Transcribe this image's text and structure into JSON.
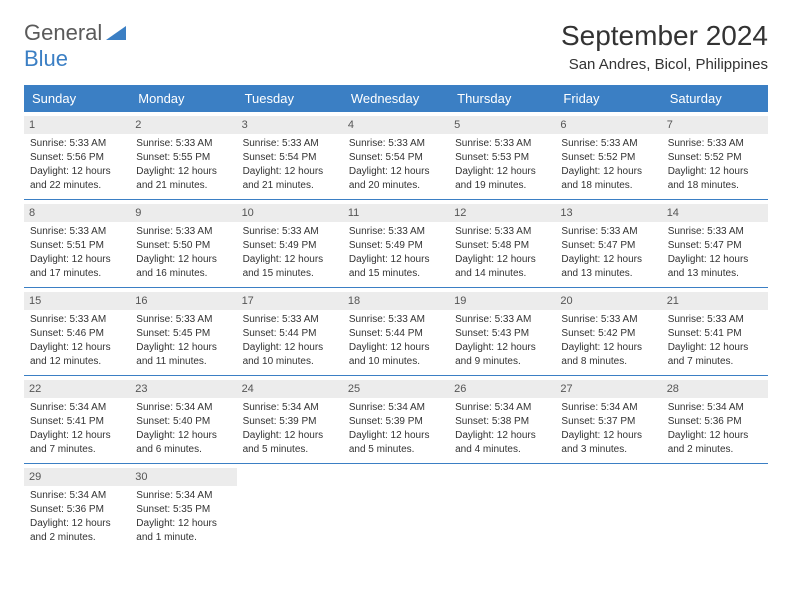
{
  "logo": {
    "part1": "General",
    "part2": "Blue"
  },
  "title": "September 2024",
  "location": "San Andres, Bicol, Philippines",
  "colors": {
    "header_bg": "#3b7fc4",
    "header_text": "#ffffff",
    "day_bg": "#ececec",
    "text": "#333333",
    "border": "#3b7fc4",
    "logo_gray": "#5a5a5a",
    "logo_blue": "#3b7fc4",
    "page_bg": "#ffffff"
  },
  "day_headers": [
    "Sunday",
    "Monday",
    "Tuesday",
    "Wednesday",
    "Thursday",
    "Friday",
    "Saturday"
  ],
  "weeks": [
    [
      {
        "n": "1",
        "sr": "Sunrise: 5:33 AM",
        "ss": "Sunset: 5:56 PM",
        "d1": "Daylight: 12 hours",
        "d2": "and 22 minutes."
      },
      {
        "n": "2",
        "sr": "Sunrise: 5:33 AM",
        "ss": "Sunset: 5:55 PM",
        "d1": "Daylight: 12 hours",
        "d2": "and 21 minutes."
      },
      {
        "n": "3",
        "sr": "Sunrise: 5:33 AM",
        "ss": "Sunset: 5:54 PM",
        "d1": "Daylight: 12 hours",
        "d2": "and 21 minutes."
      },
      {
        "n": "4",
        "sr": "Sunrise: 5:33 AM",
        "ss": "Sunset: 5:54 PM",
        "d1": "Daylight: 12 hours",
        "d2": "and 20 minutes."
      },
      {
        "n": "5",
        "sr": "Sunrise: 5:33 AM",
        "ss": "Sunset: 5:53 PM",
        "d1": "Daylight: 12 hours",
        "d2": "and 19 minutes."
      },
      {
        "n": "6",
        "sr": "Sunrise: 5:33 AM",
        "ss": "Sunset: 5:52 PM",
        "d1": "Daylight: 12 hours",
        "d2": "and 18 minutes."
      },
      {
        "n": "7",
        "sr": "Sunrise: 5:33 AM",
        "ss": "Sunset: 5:52 PM",
        "d1": "Daylight: 12 hours",
        "d2": "and 18 minutes."
      }
    ],
    [
      {
        "n": "8",
        "sr": "Sunrise: 5:33 AM",
        "ss": "Sunset: 5:51 PM",
        "d1": "Daylight: 12 hours",
        "d2": "and 17 minutes."
      },
      {
        "n": "9",
        "sr": "Sunrise: 5:33 AM",
        "ss": "Sunset: 5:50 PM",
        "d1": "Daylight: 12 hours",
        "d2": "and 16 minutes."
      },
      {
        "n": "10",
        "sr": "Sunrise: 5:33 AM",
        "ss": "Sunset: 5:49 PM",
        "d1": "Daylight: 12 hours",
        "d2": "and 15 minutes."
      },
      {
        "n": "11",
        "sr": "Sunrise: 5:33 AM",
        "ss": "Sunset: 5:49 PM",
        "d1": "Daylight: 12 hours",
        "d2": "and 15 minutes."
      },
      {
        "n": "12",
        "sr": "Sunrise: 5:33 AM",
        "ss": "Sunset: 5:48 PM",
        "d1": "Daylight: 12 hours",
        "d2": "and 14 minutes."
      },
      {
        "n": "13",
        "sr": "Sunrise: 5:33 AM",
        "ss": "Sunset: 5:47 PM",
        "d1": "Daylight: 12 hours",
        "d2": "and 13 minutes."
      },
      {
        "n": "14",
        "sr": "Sunrise: 5:33 AM",
        "ss": "Sunset: 5:47 PM",
        "d1": "Daylight: 12 hours",
        "d2": "and 13 minutes."
      }
    ],
    [
      {
        "n": "15",
        "sr": "Sunrise: 5:33 AM",
        "ss": "Sunset: 5:46 PM",
        "d1": "Daylight: 12 hours",
        "d2": "and 12 minutes."
      },
      {
        "n": "16",
        "sr": "Sunrise: 5:33 AM",
        "ss": "Sunset: 5:45 PM",
        "d1": "Daylight: 12 hours",
        "d2": "and 11 minutes."
      },
      {
        "n": "17",
        "sr": "Sunrise: 5:33 AM",
        "ss": "Sunset: 5:44 PM",
        "d1": "Daylight: 12 hours",
        "d2": "and 10 minutes."
      },
      {
        "n": "18",
        "sr": "Sunrise: 5:33 AM",
        "ss": "Sunset: 5:44 PM",
        "d1": "Daylight: 12 hours",
        "d2": "and 10 minutes."
      },
      {
        "n": "19",
        "sr": "Sunrise: 5:33 AM",
        "ss": "Sunset: 5:43 PM",
        "d1": "Daylight: 12 hours",
        "d2": "and 9 minutes."
      },
      {
        "n": "20",
        "sr": "Sunrise: 5:33 AM",
        "ss": "Sunset: 5:42 PM",
        "d1": "Daylight: 12 hours",
        "d2": "and 8 minutes."
      },
      {
        "n": "21",
        "sr": "Sunrise: 5:33 AM",
        "ss": "Sunset: 5:41 PM",
        "d1": "Daylight: 12 hours",
        "d2": "and 7 minutes."
      }
    ],
    [
      {
        "n": "22",
        "sr": "Sunrise: 5:34 AM",
        "ss": "Sunset: 5:41 PM",
        "d1": "Daylight: 12 hours",
        "d2": "and 7 minutes."
      },
      {
        "n": "23",
        "sr": "Sunrise: 5:34 AM",
        "ss": "Sunset: 5:40 PM",
        "d1": "Daylight: 12 hours",
        "d2": "and 6 minutes."
      },
      {
        "n": "24",
        "sr": "Sunrise: 5:34 AM",
        "ss": "Sunset: 5:39 PM",
        "d1": "Daylight: 12 hours",
        "d2": "and 5 minutes."
      },
      {
        "n": "25",
        "sr": "Sunrise: 5:34 AM",
        "ss": "Sunset: 5:39 PM",
        "d1": "Daylight: 12 hours",
        "d2": "and 5 minutes."
      },
      {
        "n": "26",
        "sr": "Sunrise: 5:34 AM",
        "ss": "Sunset: 5:38 PM",
        "d1": "Daylight: 12 hours",
        "d2": "and 4 minutes."
      },
      {
        "n": "27",
        "sr": "Sunrise: 5:34 AM",
        "ss": "Sunset: 5:37 PM",
        "d1": "Daylight: 12 hours",
        "d2": "and 3 minutes."
      },
      {
        "n": "28",
        "sr": "Sunrise: 5:34 AM",
        "ss": "Sunset: 5:36 PM",
        "d1": "Daylight: 12 hours",
        "d2": "and 2 minutes."
      }
    ],
    [
      {
        "n": "29",
        "sr": "Sunrise: 5:34 AM",
        "ss": "Sunset: 5:36 PM",
        "d1": "Daylight: 12 hours",
        "d2": "and 2 minutes."
      },
      {
        "n": "30",
        "sr": "Sunrise: 5:34 AM",
        "ss": "Sunset: 5:35 PM",
        "d1": "Daylight: 12 hours",
        "d2": "and 1 minute."
      },
      null,
      null,
      null,
      null,
      null
    ]
  ]
}
